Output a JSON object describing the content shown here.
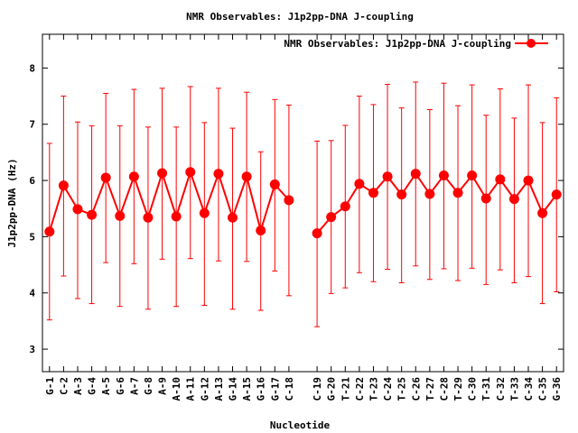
{
  "chart_data": {
    "type": "line",
    "title": "NMR Observables: J1p2pp-DNA J-coupling",
    "xlabel": "Nucleotide",
    "ylabel": "J1p2pp-DNA (Hz)",
    "ylim": [
      2.6,
      8.6
    ],
    "yticks": [
      3,
      4,
      5,
      6,
      7,
      8
    ],
    "grid": false,
    "legend": "top-right",
    "series": [
      {
        "name": "NMR Observables: J1p2pp-DNA J-coupling",
        "color": "#ff0000",
        "segments": [
          {
            "x": [
              "G-1",
              "C-2",
              "A-3",
              "G-4",
              "A-5",
              "G-6",
              "A-7",
              "G-8",
              "A-9",
              "A-10",
              "A-11",
              "G-12",
              "A-13",
              "G-14",
              "A-15",
              "G-16",
              "G-17",
              "C-18"
            ],
            "y": [
              5.09,
              5.91,
              5.49,
              5.39,
              6.05,
              5.37,
              6.07,
              5.34,
              6.13,
              5.36,
              6.15,
              5.42,
              6.12,
              5.34,
              6.07,
              5.11,
              5.93,
              5.65
            ],
            "err_low": [
              3.52,
              4.3,
              3.9,
              3.81,
              4.54,
              3.76,
              4.52,
              3.71,
              4.6,
              3.76,
              4.61,
              3.78,
              4.57,
              3.71,
              4.56,
              3.69,
              4.39,
              3.95
            ],
            "err_high": [
              6.66,
              7.5,
              7.04,
              6.97,
              7.55,
              6.97,
              7.62,
              6.95,
              7.64,
              6.95,
              7.67,
              7.03,
              7.64,
              6.93,
              7.57,
              6.51,
              7.44,
              7.34
            ]
          },
          {
            "x": [
              "C-19",
              "G-20",
              "T-21",
              "C-22",
              "T-23",
              "C-24",
              "T-25",
              "C-26",
              "T-27",
              "C-28",
              "T-29",
              "C-30",
              "T-31",
              "C-32",
              "T-33",
              "C-34",
              "C-35",
              "G-36"
            ],
            "y": [
              5.06,
              5.35,
              5.54,
              5.94,
              5.78,
              6.07,
              5.75,
              6.12,
              5.76,
              6.09,
              5.78,
              6.09,
              5.68,
              6.02,
              5.67,
              6.0,
              5.42,
              5.75
            ],
            "err_low": [
              3.4,
              3.99,
              4.09,
              4.36,
              4.2,
              4.42,
              4.18,
              4.48,
              4.24,
              4.43,
              4.22,
              4.44,
              4.15,
              4.41,
              4.18,
              4.29,
              3.81,
              4.02
            ],
            "err_high": [
              6.7,
              6.71,
              6.98,
              7.5,
              7.35,
              7.71,
              7.29,
              7.75,
              7.26,
              7.73,
              7.33,
              7.7,
              7.16,
              7.63,
              7.11,
              7.7,
              7.03,
              7.47
            ]
          }
        ]
      }
    ]
  }
}
